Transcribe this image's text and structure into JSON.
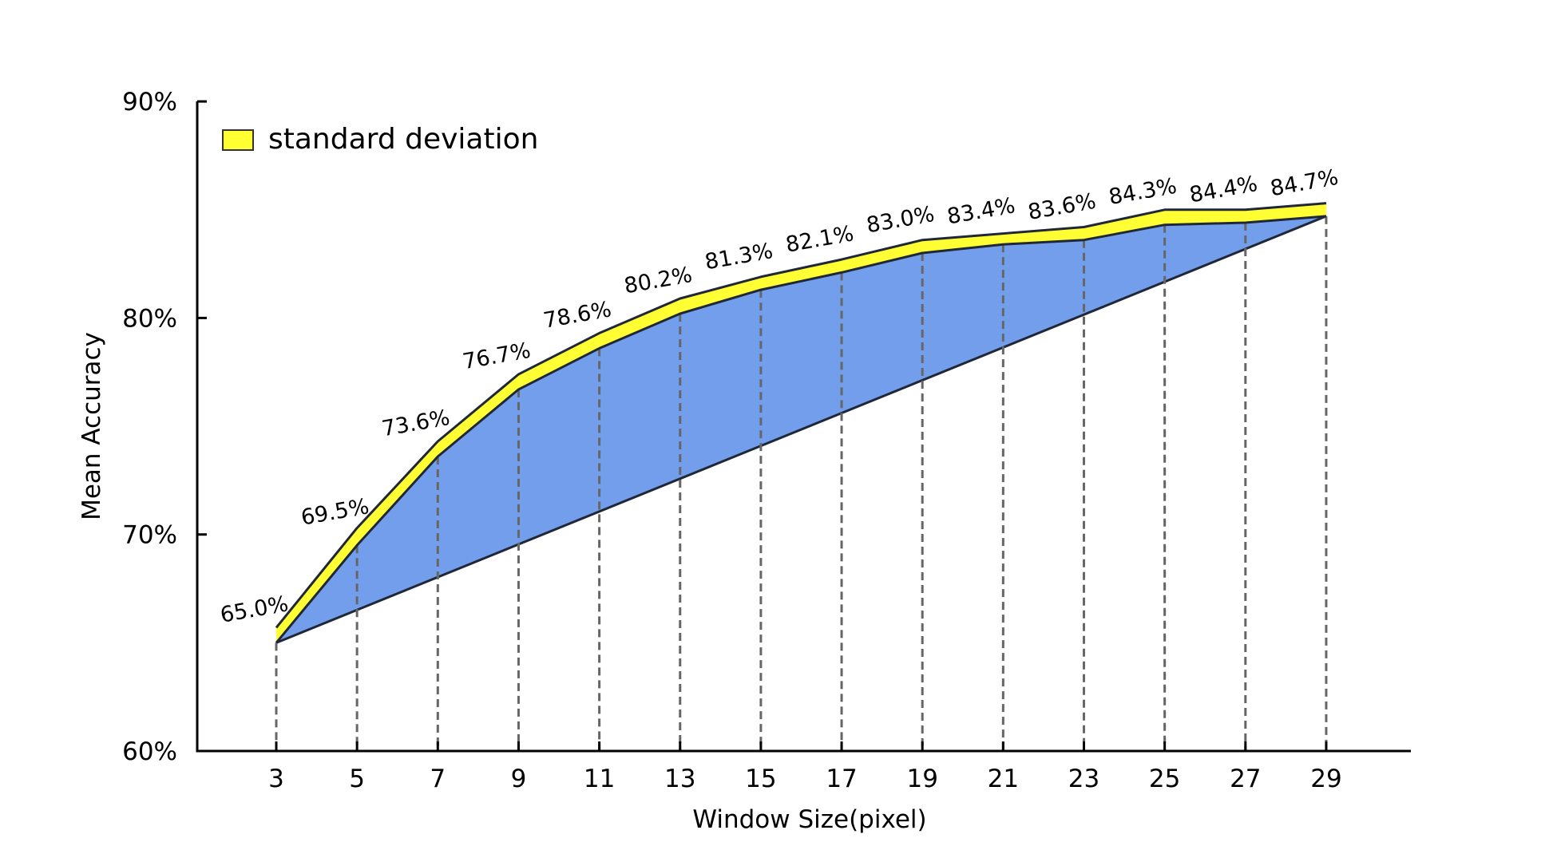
{
  "chart_data": {
    "type": "area",
    "xlabel": "Window Size(pixel)",
    "ylabel": "Mean Accuracy",
    "x": [
      3,
      5,
      7,
      9,
      11,
      13,
      15,
      17,
      19,
      21,
      23,
      25,
      27,
      29
    ],
    "x_tick_labels": [
      "3",
      "5",
      "7",
      "9",
      "11",
      "13",
      "15",
      "17",
      "19",
      "21",
      "23",
      "25",
      "27",
      "29"
    ],
    "ylim": [
      60,
      90
    ],
    "y_ticks": [
      60,
      70,
      80,
      90
    ],
    "y_tick_labels": [
      "60%",
      "70%",
      "80%",
      "90%"
    ],
    "mean_accuracy": [
      65.0,
      69.5,
      73.6,
      76.7,
      78.6,
      80.2,
      81.3,
      82.1,
      83.0,
      83.4,
      83.6,
      84.3,
      84.4,
      84.7
    ],
    "data_labels": [
      "65.0%",
      "69.5%",
      "73.6%",
      "76.7%",
      "78.6%",
      "80.2%",
      "81.3%",
      "82.1%",
      "83.0%",
      "83.4%",
      "83.6%",
      "84.3%",
      "84.4%",
      "84.7%"
    ],
    "std_upper": [
      65.7,
      70.3,
      74.3,
      77.4,
      79.3,
      80.9,
      81.9,
      82.7,
      83.6,
      83.9,
      84.2,
      85.0,
      85.0,
      85.3
    ],
    "baseline_start": 65.0,
    "baseline_end": 84.7,
    "series": [
      {
        "name": "standard deviation",
        "color": "#ffff33"
      }
    ],
    "area_color": "#739eec",
    "line_color": "#202838",
    "guide_color": "#666666",
    "legend_position": "top-left",
    "grid": false
  }
}
